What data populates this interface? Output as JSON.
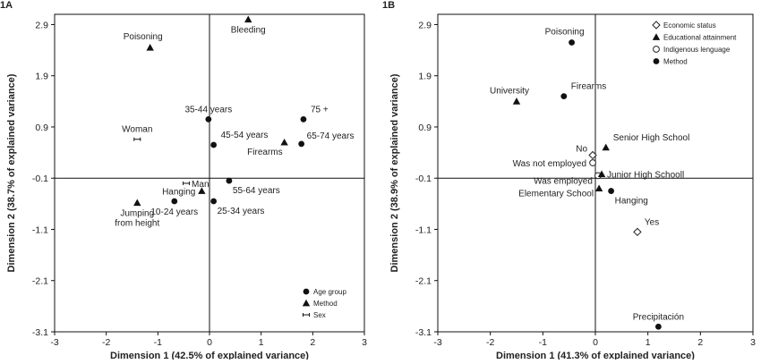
{
  "chart_data": [
    {
      "type": "scatter",
      "panel_label": "1A",
      "xlabel": "Dimension 1 (42.5% of explained variance)",
      "ylabel": "Dimension 2 (38.7% of explained variance)",
      "xlim": [
        -3,
        3
      ],
      "ylim": [
        -3.1,
        3.1
      ],
      "xticks": [
        "-3",
        "-2",
        "-1",
        "0",
        "1",
        "2",
        "3"
      ],
      "yticks": [
        "2.9",
        "1.9",
        "0.9",
        "-0.1",
        "-1.1",
        "-2.1",
        "-3.1"
      ],
      "legend_position": "bottom-right",
      "legend": [
        {
          "label": "Age group",
          "marker": "circle"
        },
        {
          "label": "Method",
          "marker": "triangle"
        },
        {
          "label": "Sex",
          "marker": "cross"
        }
      ],
      "points": [
        {
          "label": "Bleeding",
          "x": 0.75,
          "y": 3.0,
          "marker": "triangle",
          "anchor": "below"
        },
        {
          "label": "Poisoning",
          "x": -1.15,
          "y": 2.45,
          "marker": "triangle",
          "anchor": "above-left"
        },
        {
          "label": "75 +",
          "x": 1.82,
          "y": 1.05,
          "marker": "circle",
          "anchor": "above-right"
        },
        {
          "label": "35-44 years",
          "x": -0.02,
          "y": 1.05,
          "marker": "circle",
          "anchor": "above"
        },
        {
          "label": "45-54 years",
          "x": 0.08,
          "y": 0.55,
          "marker": "circle",
          "anchor": "above-right"
        },
        {
          "label": "65-74 years",
          "x": 1.78,
          "y": 0.57,
          "marker": "circle",
          "anchor": "right-up"
        },
        {
          "label": "Firearms",
          "x": 1.45,
          "y": 0.6,
          "marker": "triangle",
          "anchor": "below-left"
        },
        {
          "label": "Woman",
          "x": -1.4,
          "y": 0.66,
          "marker": "cross",
          "anchor": "above"
        },
        {
          "label": "Man",
          "x": -0.45,
          "y": -0.2,
          "marker": "cross",
          "anchor": "right"
        },
        {
          "label": "55-64 years",
          "x": 0.38,
          "y": -0.15,
          "marker": "circle",
          "anchor": "below-right"
        },
        {
          "label": "Hanging",
          "x": -0.15,
          "y": -0.35,
          "marker": "triangle",
          "anchor": "left"
        },
        {
          "label": "10-24 years",
          "x": -0.68,
          "y": -0.55,
          "marker": "circle",
          "anchor": "below"
        },
        {
          "label": "25-34 years",
          "x": 0.08,
          "y": -0.55,
          "marker": "circle",
          "anchor": "below-right"
        },
        {
          "label": "Jumping\nfrom height",
          "x": -1.4,
          "y": -0.58,
          "marker": "triangle",
          "anchor": "below"
        }
      ]
    },
    {
      "type": "scatter",
      "panel_label": "1B",
      "xlabel": "Dimension 1 (41.3% of explained variance)",
      "ylabel": "Dimension 2 (38.9% of explained variance)",
      "xlim": [
        -3,
        3
      ],
      "ylim": [
        -3.1,
        3.1
      ],
      "xticks": [
        "-3",
        "-2",
        "-1",
        "0",
        "1",
        "2",
        "3"
      ],
      "yticks": [
        "2.9",
        "1.9",
        "0.9",
        "-0.1",
        "-1.1",
        "-2.1",
        "-3.1"
      ],
      "legend_position": "top-right",
      "legend": [
        {
          "label": "Economic status",
          "marker": "diamond"
        },
        {
          "label": "Educational attainment",
          "marker": "triangle"
        },
        {
          "label": "Indigenous lenguage",
          "marker": "open-circle"
        },
        {
          "label": "Method",
          "marker": "circle"
        }
      ],
      "points": [
        {
          "label": "Poisoning",
          "x": -0.45,
          "y": 2.55,
          "marker": "circle",
          "anchor": "above-left"
        },
        {
          "label": "Firearms",
          "x": -0.6,
          "y": 1.5,
          "marker": "circle",
          "anchor": "above-right"
        },
        {
          "label": "University",
          "x": -1.5,
          "y": 1.4,
          "marker": "triangle",
          "anchor": "above-left"
        },
        {
          "label": "Senior High School",
          "x": 0.2,
          "y": 0.5,
          "marker": "triangle",
          "anchor": "above-right"
        },
        {
          "label": "No",
          "x": -0.05,
          "y": 0.35,
          "marker": "diamond",
          "anchor": "left-up"
        },
        {
          "label": "Was not employed",
          "x": -0.05,
          "y": 0.2,
          "marker": "open-circle",
          "anchor": "left"
        },
        {
          "label": "Was employed",
          "x": 0.05,
          "y": -0.05,
          "marker": "open-circle",
          "anchor": "left-down"
        },
        {
          "label": "Junior High Schooll",
          "x": 0.12,
          "y": -0.02,
          "marker": "triangle",
          "anchor": "right"
        },
        {
          "label": "Elementary School",
          "x": 0.07,
          "y": -0.3,
          "marker": "triangle",
          "anchor": "left-down"
        },
        {
          "label": "Hanging",
          "x": 0.3,
          "y": -0.35,
          "marker": "circle",
          "anchor": "below-right"
        },
        {
          "label": "Yes",
          "x": 0.8,
          "y": -1.15,
          "marker": "diamond",
          "anchor": "above-right"
        },
        {
          "label": "Precipitación",
          "x": 1.2,
          "y": -3.0,
          "marker": "circle",
          "anchor": "above"
        }
      ]
    }
  ]
}
